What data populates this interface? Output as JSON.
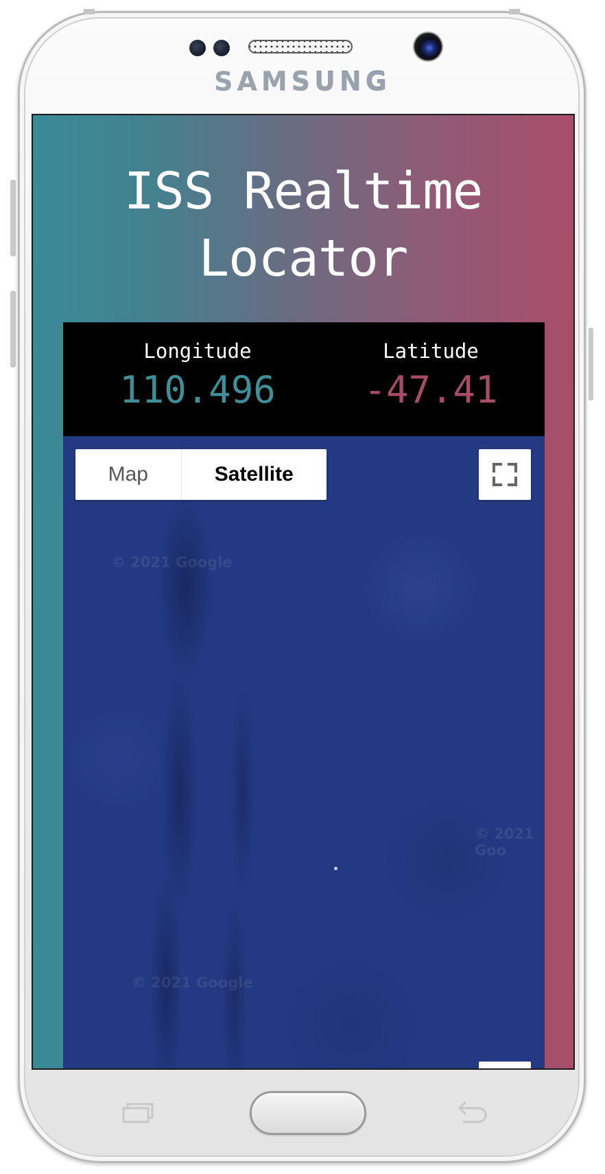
{
  "device": {
    "brand": "SAMSUNG"
  },
  "app": {
    "title_line1": "ISS Realtime",
    "title_line2": "Locator"
  },
  "coordinates": {
    "longitude": {
      "label": "Longitude",
      "value": "110.496",
      "color": "#3f8f98"
    },
    "latitude": {
      "label": "Latitude",
      "value": "-47.41",
      "color": "#a64b69"
    }
  },
  "map": {
    "map_type_options": [
      "Map",
      "Satellite"
    ],
    "selected_map_type": "Satellite",
    "watermarks": [
      "© 2021 Google",
      "© 2021 Goo",
      "© 2021 Google"
    ],
    "fullscreen_icon": "fullscreen-icon"
  },
  "colors": {
    "gradient_left": "#3a8a97",
    "gradient_right": "#a84d6a",
    "ocean": "#233a83"
  }
}
